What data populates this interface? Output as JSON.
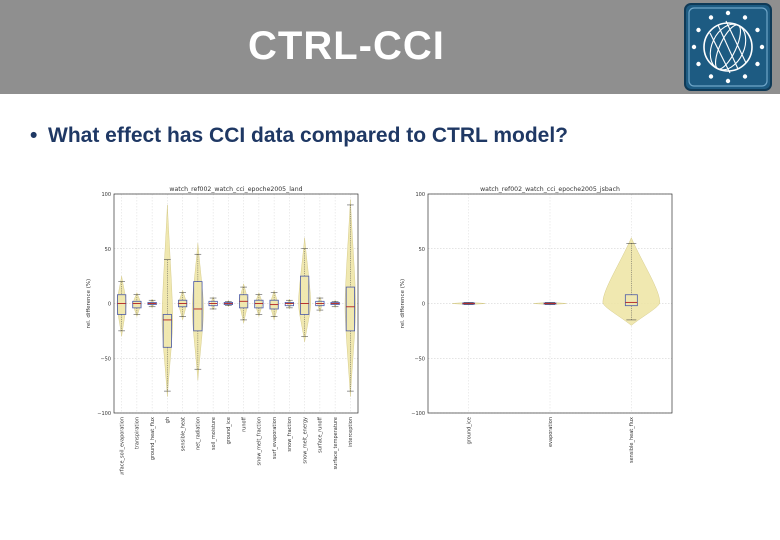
{
  "slide": {
    "title": "CTRL-CCI",
    "bullet": "What effect has CCI data compared to CTRL model?"
  },
  "colors": {
    "header_bg": "#8f8f8f",
    "title_text": "#ffffff",
    "bullet_text": "#1f3864",
    "logo_blue": "#1d5b82",
    "violin_fill": "#efe6a8",
    "box_stroke": "#4b5aa8",
    "median": "#b22222"
  },
  "chart_data": [
    {
      "type": "violin",
      "title": "watch_ref002_watch_cci_epoche2005_land",
      "xlabel": "",
      "ylabel": "rel. difference (%)",
      "ylim": [
        -100,
        100
      ],
      "yticks": [
        100,
        50,
        0,
        -50,
        -100
      ],
      "ytick_labels": [
        "100",
        "50",
        "0",
        "−50",
        "−100"
      ],
      "grid": true,
      "categories": [
        "surface_soil_evaporation",
        "transpiration",
        "ground_heat_flux",
        "gh",
        "sensible_heat",
        "net_radiation",
        "soil_moisture",
        "ground_ice",
        "runoff",
        "snow_melt_fraction",
        "surf_evaporation",
        "snow_fraction",
        "snow_melt_energy",
        "surface_runoff",
        "surface_temperature",
        "interception"
      ],
      "series": [
        {
          "q1": -10,
          "q3": 8,
          "median": 0,
          "whisker_low": -25,
          "whisker_high": 20,
          "violin_width": 0.6,
          "violin_extent": [
            -30,
            25
          ]
        },
        {
          "q1": -4,
          "q3": 2,
          "median": 0,
          "whisker_low": -10,
          "whisker_high": 8,
          "violin_width": 0.5,
          "violin_extent": [
            -12,
            10
          ]
        },
        {
          "q1": -1,
          "q3": 1,
          "median": 0,
          "whisker_low": -3,
          "whisker_high": 3,
          "violin_width": 0.25,
          "violin_extent": [
            -4,
            4
          ]
        },
        {
          "q1": -40,
          "q3": -10,
          "median": -15,
          "whisker_low": -80,
          "whisker_high": 40,
          "violin_width": 0.7,
          "violin_extent": [
            -85,
            90
          ]
        },
        {
          "q1": -3,
          "q3": 3,
          "median": 0,
          "whisker_low": -12,
          "whisker_high": 10,
          "violin_width": 0.5,
          "violin_extent": [
            -15,
            12
          ]
        },
        {
          "q1": -25,
          "q3": 20,
          "median": -5,
          "whisker_low": -60,
          "whisker_high": 45,
          "violin_width": 0.75,
          "violin_extent": [
            -70,
            55
          ]
        },
        {
          "q1": -2,
          "q3": 2,
          "median": 0,
          "whisker_low": -5,
          "whisker_high": 5,
          "violin_width": 0.3,
          "violin_extent": [
            -6,
            6
          ]
        },
        {
          "q1": -1,
          "q3": 1,
          "median": 0,
          "whisker_low": -2,
          "whisker_high": 2,
          "violin_width": 0.15,
          "violin_extent": [
            -3,
            3
          ]
        },
        {
          "q1": -4,
          "q3": 8,
          "median": 2,
          "whisker_low": -15,
          "whisker_high": 15,
          "violin_width": 0.55,
          "violin_extent": [
            -18,
            18
          ]
        },
        {
          "q1": -4,
          "q3": 3,
          "median": 0,
          "whisker_low": -10,
          "whisker_high": 8,
          "violin_width": 0.45,
          "violin_extent": [
            -12,
            10
          ]
        },
        {
          "q1": -5,
          "q3": 3,
          "median": -1,
          "whisker_low": -12,
          "whisker_high": 10,
          "violin_width": 0.5,
          "violin_extent": [
            -15,
            12
          ]
        },
        {
          "q1": -2,
          "q3": 1,
          "median": 0,
          "whisker_low": -4,
          "whisker_high": 3,
          "violin_width": 0.25,
          "violin_extent": [
            -5,
            4
          ]
        },
        {
          "q1": -10,
          "q3": 25,
          "median": 0,
          "whisker_low": -30,
          "whisker_high": 50,
          "violin_width": 0.8,
          "violin_extent": [
            -35,
            60
          ]
        },
        {
          "q1": -2,
          "q3": 2,
          "median": 0,
          "whisker_low": -6,
          "whisker_high": 5,
          "violin_width": 0.3,
          "violin_extent": [
            -8,
            6
          ]
        },
        {
          "q1": -1,
          "q3": 1,
          "median": 0,
          "whisker_low": -3,
          "whisker_high": 2,
          "violin_width": 0.15,
          "violin_extent": [
            -4,
            3
          ]
        },
        {
          "q1": -25,
          "q3": 15,
          "median": -3,
          "whisker_low": -80,
          "whisker_high": 90,
          "violin_width": 0.7,
          "violin_extent": [
            -85,
            95
          ]
        }
      ]
    },
    {
      "type": "violin",
      "title": "watch_ref002_watch_cci_epoche2005_jsbach",
      "xlabel": "",
      "ylabel": "rel. difference (%)",
      "ylim": [
        -100,
        100
      ],
      "yticks": [
        100,
        50,
        0,
        -50,
        -100
      ],
      "ytick_labels": [
        "100",
        "50",
        "0",
        "−50",
        "−100"
      ],
      "grid": true,
      "categories": [
        "ground_ice",
        "evaporation",
        "sensible_heat_flux"
      ],
      "series": [
        {
          "q1": -0.5,
          "q3": 0.5,
          "median": 0,
          "whisker_low": -1,
          "whisker_high": 1,
          "violin_width": 0.4,
          "violin_extent": [
            -1,
            1
          ]
        },
        {
          "q1": -0.5,
          "q3": 0.5,
          "median": 0,
          "whisker_low": -1,
          "whisker_high": 1,
          "violin_width": 0.4,
          "violin_extent": [
            -1,
            1
          ]
        },
        {
          "q1": -2,
          "q3": 8,
          "median": 1,
          "whisker_low": -15,
          "whisker_high": 55,
          "violin_width": 0.7,
          "violin_extent": [
            -20,
            60
          ]
        }
      ]
    }
  ]
}
